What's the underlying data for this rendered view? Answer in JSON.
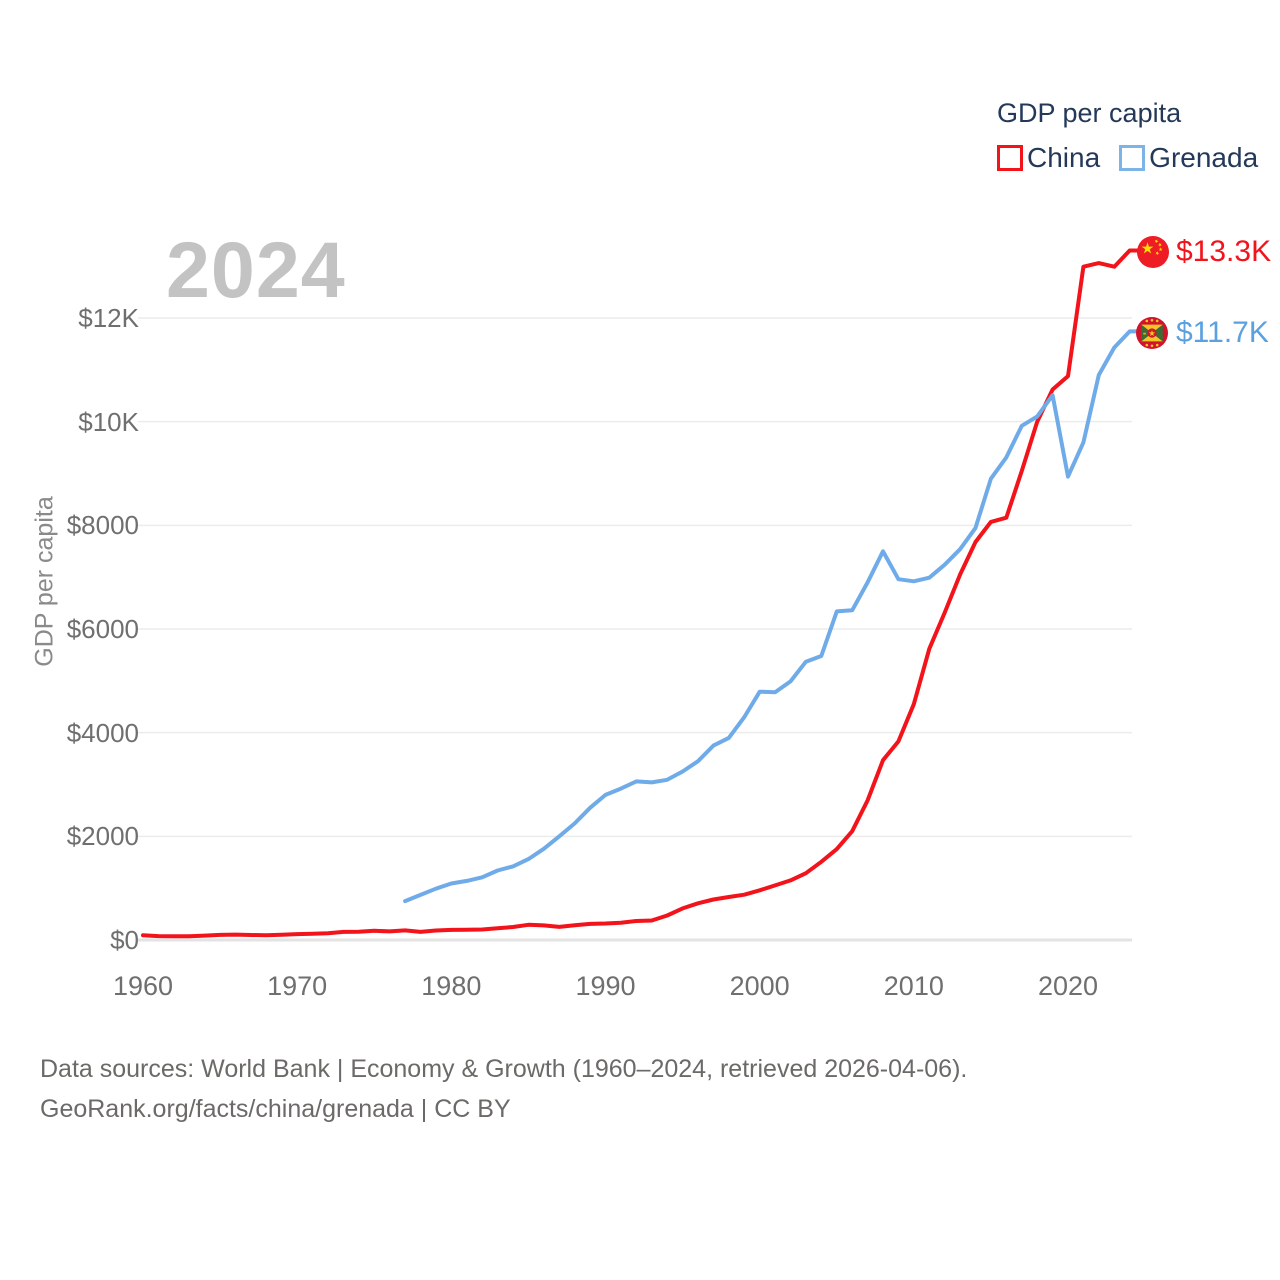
{
  "legend": {
    "title": "GDP per capita",
    "items": [
      {
        "label": "China",
        "color": "#f2131b"
      },
      {
        "label": "Grenada",
        "color": "#7db4e8"
      }
    ]
  },
  "year_label": "2024",
  "y_axis": {
    "title": "GDP per capita",
    "ticks": [
      {
        "value": 0,
        "label": "$0"
      },
      {
        "value": 2000,
        "label": "$2000"
      },
      {
        "value": 4000,
        "label": "$4000"
      },
      {
        "value": 6000,
        "label": "$6000"
      },
      {
        "value": 8000,
        "label": "$8000"
      },
      {
        "value": 10000,
        "label": "$10K"
      },
      {
        "value": 12000,
        "label": "$12K"
      }
    ]
  },
  "x_axis": {
    "ticks": [
      {
        "value": 1960,
        "label": "1960"
      },
      {
        "value": 1970,
        "label": "1970"
      },
      {
        "value": 1980,
        "label": "1980"
      },
      {
        "value": 1990,
        "label": "1990"
      },
      {
        "value": 2000,
        "label": "2000"
      },
      {
        "value": 2010,
        "label": "2010"
      },
      {
        "value": 2020,
        "label": "2020"
      }
    ]
  },
  "end_labels": [
    {
      "series": "China",
      "label": "$13.3K",
      "color": "#f2131b",
      "flag": "china-flag"
    },
    {
      "series": "Grenada",
      "label": "$11.7K",
      "color": "#5ba0e0",
      "flag": "grenada-flag"
    }
  ],
  "footer": {
    "line1": "Data sources: World Bank | Economy & Growth (1960–2024, retrieved 2026-04-06).",
    "line2": "GeoRank.org/facts/china/grenada | CC BY"
  },
  "chart_data": {
    "type": "line",
    "title": "GDP per capita",
    "xlabel": "",
    "ylabel": "GDP per capita",
    "xlim": [
      1960,
      2024
    ],
    "ylim": [
      0,
      13500
    ],
    "grid": "horizontal",
    "legend_position": "top-right",
    "series": [
      {
        "name": "China",
        "color": "#f2131b",
        "x_start": 1960,
        "y": [
          90,
          76,
          71,
          74,
          85,
          98,
          104,
          97,
          91,
          100,
          113,
          119,
          132,
          157,
          160,
          178,
          165,
          185,
          156,
          184,
          195,
          197,
          203,
          225,
          251,
          294,
          282,
          252,
          284,
          311,
          318,
          333,
          366,
          377,
          473,
          610,
          709,
          782,
          829,
          873,
          959,
          1053,
          1149,
          1289,
          1509,
          1753,
          2099,
          2694,
          3468,
          3832,
          4550,
          5618,
          6317,
          7051,
          7679,
          8067,
          8148,
          9050,
          10000,
          10620,
          10880,
          12990,
          13060,
          12990,
          13303
        ]
      },
      {
        "name": "Grenada",
        "color": "#6fabe8",
        "x_start": 1977,
        "y": [
          750,
          870,
          990,
          1090,
          1140,
          1210,
          1340,
          1420,
          1560,
          1760,
          2000,
          2250,
          2550,
          2800,
          2920,
          3060,
          3040,
          3090,
          3250,
          3450,
          3750,
          3900,
          4300,
          4790,
          4780,
          4990,
          5370,
          5480,
          6340,
          6360,
          6900,
          7500,
          6960,
          6920,
          6990,
          7240,
          7540,
          7950,
          8900,
          9310,
          9920,
          10100,
          10510,
          8940,
          9600,
          10900,
          11430,
          11742
        ]
      }
    ]
  }
}
